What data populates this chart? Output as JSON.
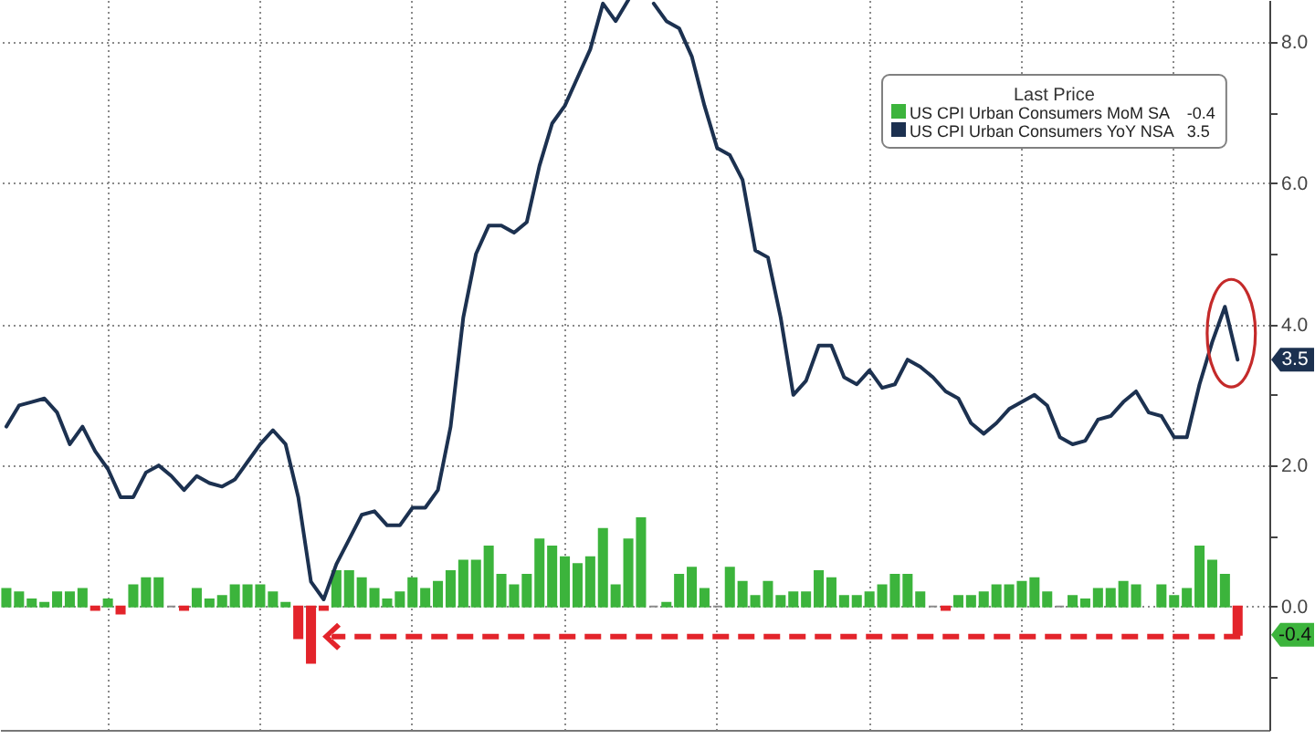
{
  "chart_data": {
    "type": "bar",
    "legend_title": "Last Price",
    "categories": [
      null,
      null,
      null,
      null,
      null,
      null,
      null,
      null,
      null,
      null,
      null,
      null,
      null,
      null,
      null,
      null,
      null,
      null,
      null,
      null,
      null,
      null,
      null,
      null,
      null,
      null,
      null,
      null,
      null,
      null,
      null,
      null,
      null,
      null,
      null,
      null,
      null,
      null,
      null,
      null,
      null,
      null,
      null,
      null,
      null,
      null,
      null,
      null,
      null,
      null,
      null,
      null,
      null,
      null,
      null,
      null,
      null,
      null,
      null,
      null,
      null,
      null,
      null,
      null,
      null,
      null,
      null,
      null,
      null,
      null,
      null,
      null,
      null,
      null,
      null,
      null,
      null,
      null,
      null,
      null,
      null,
      null,
      null,
      null,
      null,
      null,
      null,
      null,
      null,
      null,
      null,
      null,
      null,
      null,
      null,
      null,
      null,
      null,
      null,
      null
    ],
    "series": [
      {
        "name": "US CPI Urban Consumers MoM SA",
        "color": "#3cb43c",
        "values": [
          0.25,
          0.2,
          0.1,
          0.05,
          0.2,
          0.2,
          0.25,
          -0.05,
          0.1,
          -0.1,
          0.3,
          0.4,
          0.4,
          0,
          -0.05,
          0.25,
          0.1,
          0.15,
          0.3,
          0.3,
          0.3,
          0.2,
          0.05,
          -0.45,
          -0.8,
          -0.05,
          0.5,
          0.5,
          0.4,
          0.25,
          0.1,
          0.2,
          0.4,
          0.25,
          0.35,
          0.5,
          0.65,
          0.65,
          0.85,
          0.45,
          0.3,
          0.45,
          0.95,
          0.85,
          0.7,
          0.6,
          0.7,
          1.1,
          0.3,
          0.95,
          1.25,
          0,
          0.05,
          0.45,
          0.55,
          0.25,
          0,
          0.55,
          0.35,
          0.15,
          0.35,
          0.15,
          0.2,
          0.2,
          0.5,
          0.4,
          0.15,
          0.15,
          0.2,
          0.3,
          0.45,
          0.45,
          0.2,
          0,
          -0.05,
          0.15,
          0.15,
          0.2,
          0.3,
          0.3,
          0.35,
          0.4,
          0.2,
          0,
          0.15,
          0.1,
          0.25,
          0.25,
          0.35,
          0.3,
          null,
          0.3,
          0.15,
          0.25,
          0.85,
          0.65,
          0.45,
          -0.4,
          null,
          null
        ],
        "colors": [
          "#3cb43c",
          "#3cb43c",
          "#3cb43c",
          "#3cb43c",
          "#3cb43c",
          "#3cb43c",
          "#3cb43c",
          "#e3242b",
          "#3cb43c",
          "#e3242b",
          "#3cb43c",
          "#3cb43c",
          "#3cb43c",
          "#8c8c8c",
          "#e3242b",
          "#3cb43c",
          "#3cb43c",
          "#3cb43c",
          "#3cb43c",
          "#3cb43c",
          "#3cb43c",
          "#3cb43c",
          "#3cb43c",
          "#e3242b",
          "#e3242b",
          "#e3242b",
          "#3cb43c",
          "#3cb43c",
          "#3cb43c",
          "#3cb43c",
          "#3cb43c",
          "#3cb43c",
          "#3cb43c",
          "#3cb43c",
          "#3cb43c",
          "#3cb43c",
          "#3cb43c",
          "#3cb43c",
          "#3cb43c",
          "#3cb43c",
          "#3cb43c",
          "#3cb43c",
          "#3cb43c",
          "#3cb43c",
          "#3cb43c",
          "#3cb43c",
          "#3cb43c",
          "#3cb43c",
          "#3cb43c",
          "#3cb43c",
          "#3cb43c",
          "#8c8c8c",
          "#3cb43c",
          "#3cb43c",
          "#3cb43c",
          "#3cb43c",
          "#8c8c8c",
          "#3cb43c",
          "#3cb43c",
          "#3cb43c",
          "#3cb43c",
          "#3cb43c",
          "#3cb43c",
          "#3cb43c",
          "#3cb43c",
          "#3cb43c",
          "#3cb43c",
          "#3cb43c",
          "#3cb43c",
          "#3cb43c",
          "#3cb43c",
          "#3cb43c",
          "#3cb43c",
          "#8c8c8c",
          "#e3242b",
          "#3cb43c",
          "#3cb43c",
          "#3cb43c",
          "#3cb43c",
          "#3cb43c",
          "#3cb43c",
          "#3cb43c",
          "#3cb43c",
          "#8c8c8c",
          "#3cb43c",
          "#3cb43c",
          "#3cb43c",
          "#3cb43c",
          "#3cb43c",
          "#3cb43c",
          null,
          "#3cb43c",
          "#3cb43c",
          "#3cb43c",
          "#3cb43c",
          "#3cb43c",
          "#3cb43c",
          "#e3242b",
          null,
          null
        ]
      },
      {
        "name": "US CPI Urban Consumers YoY NSA",
        "type": "line",
        "color": "#1c3150",
        "values": [
          2.55,
          2.85,
          2.9,
          2.95,
          2.75,
          2.3,
          2.55,
          2.2,
          1.95,
          1.55,
          1.55,
          1.9,
          2.0,
          1.85,
          1.65,
          1.85,
          1.75,
          1.7,
          1.8,
          2.05,
          2.3,
          2.5,
          2.3,
          1.55,
          0.35,
          0.1,
          0.6,
          0.95,
          1.3,
          1.35,
          1.15,
          1.15,
          1.4,
          1.4,
          1.65,
          2.55,
          4.1,
          5.0,
          5.4,
          5.4,
          5.3,
          5.45,
          6.25,
          6.85,
          7.1,
          7.5,
          7.9,
          8.55,
          8.3,
          8.6,
          null,
          8.55,
          8.3,
          8.2,
          7.8,
          7.1,
          6.5,
          6.4,
          6.05,
          5.05,
          4.95,
          4.1,
          3.0,
          3.2,
          3.7,
          3.7,
          3.25,
          3.15,
          3.35,
          3.1,
          3.15,
          3.5,
          3.4,
          3.25,
          3.05,
          2.95,
          2.6,
          2.45,
          2.6,
          2.8,
          2.9,
          3.0,
          2.85,
          2.4,
          2.3,
          2.35,
          2.65,
          2.7,
          2.9,
          3.05,
          2.75,
          2.7,
          2.4,
          2.4,
          3.15,
          3.75,
          4.25,
          3.5,
          null,
          null
        ]
      }
    ],
    "annotations": [
      {
        "text": "3.5",
        "y": 3.5
      },
      {
        "text": "-0.4",
        "y": -0.4
      }
    ],
    "ylim": [
      -1.75,
      8.6
    ],
    "yticks": [
      {
        "value": -1,
        "label": null
      },
      {
        "value": 0,
        "label": "0.0"
      },
      {
        "value": 1,
        "label": null
      },
      {
        "value": 2,
        "label": "2.0"
      },
      {
        "value": 3,
        "label": null
      },
      {
        "value": 4,
        "label": "4.0"
      },
      {
        "value": 5,
        "label": null
      },
      {
        "value": 6,
        "label": "6.0"
      },
      {
        "value": 7,
        "label": null
      },
      {
        "value": 8,
        "label": "8.0"
      }
    ],
    "grid": true,
    "legend": "top right",
    "tick_labels": "y"
  }
}
